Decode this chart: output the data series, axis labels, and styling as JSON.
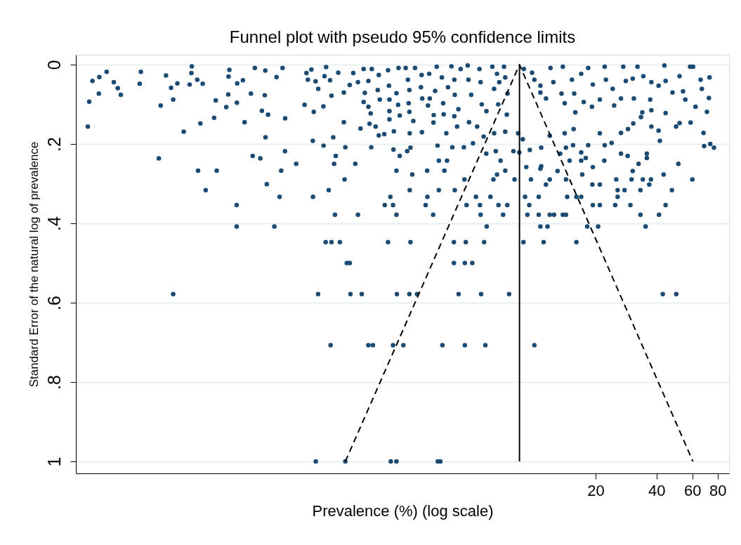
{
  "chart_data": {
    "type": "scatter",
    "title": "Funnel plot with pseudo 95% confidence limits",
    "xlabel": "Prevalence (%) (log scale)",
    "ylabel": "Standard Error of the natural log of prevalence",
    "log": "x",
    "grid": "y",
    "marker": "circle",
    "xlim": [
      0.055,
      91
    ],
    "xticks": [
      20,
      40,
      60,
      80
    ],
    "ylim": [
      1.03,
      -0.025
    ],
    "yticks": [
      0,
      {
        "value": 0.2,
        "label": ".2"
      },
      {
        "value": 0.4,
        "label": ".4"
      },
      {
        "value": 0.6,
        "label": ".6"
      },
      {
        "value": 0.8,
        "label": ".8"
      },
      1
    ],
    "series": [
      {
        "type": "scatter",
        "color": "#1b4a73",
        "x": [
          0.063,
          0.064,
          0.0664,
          0.0714,
          0.0718,
          0.078,
          0.0846,
          0.0885,
          0.0916,
          0.115,
          0.1135,
          0.144,
          0.153,
          0.162,
          0.166,
          0.174,
          0.187,
          0.205,
          0.204,
          0.2,
          0.218,
          0.226,
          0.232,
          0.264,
          0.269,
          0.141,
          0.22,
          0.272,
          0.24,
          0.341,
          0.341,
          0.314,
          0.311,
          0.31,
          0.303,
          0.342,
          0.343,
          0.366,
          0.373,
          0.401,
          0.419,
          0.469,
          0.454,
          0.487,
          0.473,
          0.409,
          0.446,
          0.48,
          0.555,
          0.523,
          0.565,
          0.59,
          0.591,
          0.536,
          0.574,
          0.472
        ],
        "values": [
          0.156,
          0.093,
          0.041,
          0.073,
          0.031,
          0.018,
          0.044,
          0.059,
          0.076,
          0.018,
          0.048,
          0.103,
          0.027,
          0.058,
          0.088,
          0.047,
          0.169,
          0.004,
          0.021,
          0.05,
          0.038,
          0.148,
          0.048,
          0.134,
          0.09,
          0.236,
          0.267,
          0.267,
          0.316,
          0.354,
          0.408,
          0.013,
          0.03,
          0.075,
          0.107,
          0.096,
          0.047,
          0.039,
          0.145,
          0.073,
          0.008,
          0.077,
          0.116,
          0.126,
          0.183,
          0.23,
          0.236,
          0.301,
          0.333,
          0.408,
          0.267,
          0.218,
          0.135,
          0.031,
          0.008,
          0.015
        ]
      },
      {
        "type": "scatter",
        "color": "#1b4a73",
        "x": [
          0.67,
          0.737,
          0.818,
          0.809,
          0.914,
          0.912,
          1.02,
          1.05,
          1.03,
          1.15,
          1.16,
          0.969,
          0.811,
          1.04,
          1.35,
          1.31,
          1.17,
          1.57,
          1.39,
          1.54,
          1.83,
          2.01,
          1.95,
          2.09,
          2.09,
          2.02,
          2.17,
          2.36,
          2.45,
          2.5,
          2.43,
          2.91,
          2.97,
          3.17,
          2.96,
          3.38,
          3.6,
          3.71,
          3.38,
          3.33,
          3.94,
          4.05,
          4.52,
          4.63,
          4.49,
          5.15,
          5.39,
          5.43,
          6.07,
          5.82,
          6.65,
          7.01,
          7.35,
          7.18,
          6.54,
          6.28,
          6.81,
          6.45,
          5.79,
          7.18,
          6.33,
          5.62,
          4.98,
          4.16,
          3.68,
          2.79,
          2.43,
          2.03,
          1.82,
          1.71,
          1.65,
          1.93,
          2.17,
          2.53,
          3.18,
          3.57,
          4.03,
          4.76,
          5.22
        ],
        "values": [
          0.25,
          0.101,
          0.119,
          0.192,
          0.204,
          0.105,
          0.183,
          0.23,
          0.25,
          0.145,
          0.289,
          0.316,
          0.333,
          0.378,
          0.378,
          0.25,
          0.208,
          0.208,
          0.161,
          0.149,
          0.354,
          0.354,
          0.333,
          0.378,
          0.267,
          0.214,
          0.23,
          0.218,
          0.209,
          0.277,
          0.316,
          0.354,
          0.333,
          0.378,
          0.267,
          0.316,
          0.267,
          0.242,
          0.242,
          0.204,
          0.208,
          0.316,
          0.289,
          0.354,
          0.208,
          0.333,
          0.354,
          0.378,
          0.333,
          0.408,
          0.354,
          0.378,
          0.354,
          0.267,
          0.277,
          0.289,
          0.242,
          0.218,
          0.224,
          0.169,
          0.173,
          0.181,
          0.198,
          0.156,
          0.173,
          0.17,
          0.173,
          0.168,
          0.175,
          0.178,
          0.156,
          0.138,
          0.128,
          0.142,
          0.146,
          0.125,
          0.13,
          0.145,
          0.156
        ]
      },
      {
        "type": "scatter",
        "color": "#1b4a73",
        "x": [
          0.753,
          0.796,
          0.765,
          0.835,
          0.86,
          0.941,
          0.924,
          0.984,
          1.0,
          1.08,
          1.15,
          1.23,
          1.28,
          1.44,
          1.35,
          1.46,
          1.52,
          1.58,
          1.44,
          1.52,
          1.56,
          1.71,
          1.69,
          1.73,
          1.9,
          1.92,
          1.93,
          1.93,
          2.09,
          2.13,
          2.14,
          2.32,
          2.38,
          2.42,
          2.4,
          2.42,
          2.58,
          2.78,
          2.76,
          2.8,
          3.03,
          3.05,
          2.99,
          3.19,
          3.3,
          3.24,
          3.5,
          3.55,
          3.75,
          3.9,
          4.03,
          4.05,
          4.22,
          4.33,
          4.69,
          4.73,
          4.88,
          5.36,
          5.43,
          5.5,
          5.8,
          6.2,
          6.33,
          6.54,
          6.71,
          6.63,
          7.08,
          7.18,
          7.31,
          7.37
        ],
        "values": [
          0.021,
          0.012,
          0.038,
          0.042,
          0.061,
          0.006,
          0.029,
          0.039,
          0.078,
          0.02,
          0.07,
          0.051,
          0.021,
          0.011,
          0.044,
          0.071,
          0.041,
          0.011,
          0.094,
          0.106,
          0.123,
          0.026,
          0.064,
          0.088,
          0.014,
          0.053,
          0.088,
          0.117,
          0.072,
          0.101,
          0.008,
          0.008,
          0.038,
          0.064,
          0.097,
          0.119,
          0.008,
          0.026,
          0.057,
          0.085,
          0.023,
          0.085,
          0.103,
          0.127,
          0.005,
          0.066,
          0.032,
          0.097,
          0.057,
          0.004,
          0.038,
          0.076,
          0.112,
          0.011,
          0.002,
          0.038,
          0.076,
          0.011,
          0.044,
          0.1,
          0.117,
          0.005,
          0.061,
          0.023,
          0.044,
          0.1,
          0.005,
          0.032,
          0.126,
          0.073
        ]
      },
      {
        "type": "scatter",
        "color": "#1b4a73",
        "x": [
          8.87,
          9.74,
          10.0,
          10.7,
          10.7,
          11.4,
          12.0,
          12.4,
          13.8,
          13.6,
          14.1,
          15.3,
          15.7,
          15.9,
          17.0,
          17.5,
          18.4,
          19.4,
          19.2,
          21.0,
          22.2,
          22.5,
          24.3,
          24.7,
          26.7,
          27.4,
          28.2,
          30.5,
          30.9,
          32.2,
          34.0,
          34.4,
          37.7,
          37.7,
          37.2,
          40.9,
          43.7,
          44.3,
          47.9,
          51.9,
          54.0,
          55.4,
          58.5,
          60.5,
          65.9,
          66.8,
          72.9,
          72.4,
          70.8,
          68.1,
          68.6,
          73.5,
          76.7
        ],
        "values": [
          0.011,
          0.02,
          0.038,
          0.053,
          0.07,
          0.085,
          0.008,
          0.044,
          0.005,
          0.073,
          0.097,
          0.038,
          0.073,
          0.12,
          0.023,
          0.094,
          0.008,
          0.05,
          0.106,
          0.088,
          0.005,
          0.038,
          0.061,
          0.103,
          0.085,
          0.005,
          0.041,
          0.035,
          0.085,
          0.005,
          0.12,
          0.029,
          0.044,
          0.115,
          0.088,
          0.053,
          0.002,
          0.041,
          0.07,
          0.029,
          0.067,
          0.088,
          0.005,
          0.005,
          0.038,
          0.061,
          0.032,
          0.084,
          0.119,
          0.172,
          0.205,
          0.2,
          0.209
        ]
      },
      {
        "type": "scatter",
        "color": "#1b4a73",
        "x": [
          62.2,
          58.8,
          51.9,
          49.9,
          44.3,
          41.5,
          40.9,
          37.7,
          33.5,
          30.7,
          28.9,
          26.7,
          24.0,
          22.2,
          21.0,
          18.4,
          17.0,
          15.5,
          14.3,
          10.8,
          9.49,
          8.42,
          7.88,
          8.31,
          8.76,
          11.9,
          14.1,
          15.6,
          32.6,
          35.8,
          35.8,
          28.8,
          26.7,
          22.1,
          19.4,
          17.9,
          17.0,
          14.9,
          13.4,
          10.8,
          9.12,
          10.7,
          13.0,
          17.2,
          30.5,
          51.2,
          43.3,
          25.3,
          30.1,
          34.2,
          37.5,
          60.0,
          7.98,
          9.61,
          11.9,
          14.3,
          11.4,
          19.3,
          21.0,
          36.8,
          25.7,
          27.8,
          33.3,
          47.6,
          8.99,
          10.5,
          14.5,
          16.1,
          17.0,
          25.7,
          9.43,
          19.4,
          21.0,
          25.0,
          29.7,
          44.3,
          9.23,
          10.5,
          11.9,
          12.5,
          13.8,
          14.3,
          33.3,
          41.1,
          10.7,
          11.6,
          18.2,
          20.6,
          35.3
        ],
        "values": [
          0.106,
          0.146,
          0.147,
          0.156,
          0.122,
          0.192,
          0.166,
          0.156,
          0.132,
          0.148,
          0.162,
          0.172,
          0.197,
          0.203,
          0.173,
          0.203,
          0.221,
          0.203,
          0.209,
          0.209,
          0.215,
          0.221,
          0.218,
          0.173,
          0.188,
          0.179,
          0.173,
          0.162,
          0.25,
          0.224,
          0.235,
          0.23,
          0.224,
          0.242,
          0.258,
          0.235,
          0.242,
          0.242,
          0.224,
          0.256,
          0.258,
          0.262,
          0.268,
          0.277,
          0.268,
          0.25,
          0.277,
          0.289,
          0.289,
          0.289,
          0.289,
          0.289,
          0.289,
          0.289,
          0.289,
          0.289,
          0.302,
          0.302,
          0.302,
          0.302,
          0.316,
          0.316,
          0.316,
          0.316,
          0.333,
          0.333,
          0.333,
          0.333,
          0.333,
          0.333,
          0.354,
          0.354,
          0.354,
          0.354,
          0.354,
          0.354,
          0.378,
          0.378,
          0.378,
          0.378,
          0.378,
          0.378,
          0.378,
          0.378,
          0.408,
          0.408,
          0.408,
          0.408,
          0.408
        ]
      },
      {
        "type": "scatter",
        "color": "#1b4a73",
        "x": [
          0.166,
          0.859,
          1.24,
          1.41,
          2.1,
          0.936,
          1.0,
          1.1,
          1.9,
          1.19,
          1.23,
          0.99,
          1.52,
          1.6,
          2.01,
          0.837,
          1.17,
          1.96,
          2.09,
          2.45,
          4.01,
          4.59,
          5.65,
          8.83,
          11.1,
          16.1,
          4.01,
          4.54,
          4.94,
          2.42,
          2.64,
          4.23,
          5.46,
          7.5,
          42.9,
          50.0,
          2.26,
          3.52,
          4.54,
          5.73,
          10.0,
          3.34,
          3.44
        ],
        "values": [
          0.578,
          0.578,
          0.578,
          0.578,
          0.578,
          0.447,
          0.447,
          0.447,
          0.447,
          0.5,
          0.5,
          0.707,
          0.707,
          0.707,
          0.707,
          1.0,
          1.0,
          1.0,
          1.0,
          0.447,
          0.447,
          0.447,
          0.447,
          0.447,
          0.447,
          0.447,
          0.5,
          0.5,
          0.5,
          0.578,
          0.578,
          0.578,
          0.578,
          0.578,
          0.578,
          0.578,
          0.707,
          0.707,
          0.707,
          0.707,
          0.707,
          1.0,
          1.0
        ]
      },
      {
        "type": "line",
        "marker": "none",
        "color": "#000000",
        "line_style": "solid",
        "x": [
          8.44,
          8.44
        ],
        "values": [
          0,
          1
        ]
      },
      {
        "type": "line",
        "marker": "none",
        "color": "#000000",
        "line_style": "dashed",
        "x": [
          1.17,
          8.44,
          60.4
        ],
        "values": [
          1,
          0,
          1
        ]
      }
    ]
  }
}
